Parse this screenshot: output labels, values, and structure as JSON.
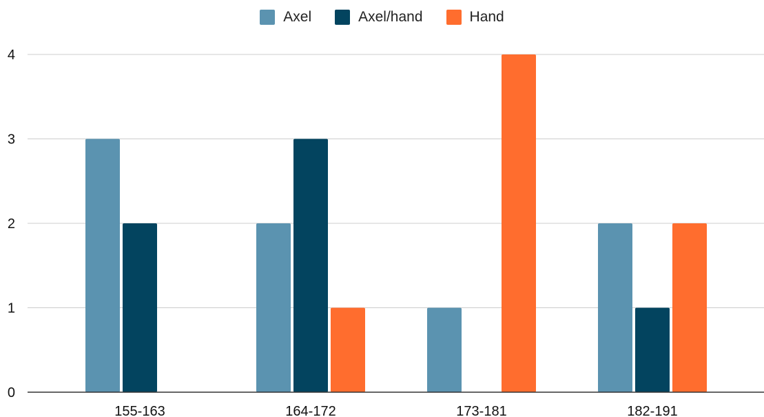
{
  "chart_data": {
    "type": "bar",
    "title": "",
    "xlabel": "",
    "ylabel": "",
    "categories": [
      "155-163",
      "164-172",
      "173-181",
      "182-191"
    ],
    "series": [
      {
        "name": "Axel",
        "color": "#5b93b0",
        "values": [
          3,
          2,
          1,
          2
        ]
      },
      {
        "name": "Axel/hand",
        "color": "#03445f",
        "values": [
          2,
          3,
          0,
          1
        ]
      },
      {
        "name": "Hand",
        "color": "#ff6d2e",
        "values": [
          0,
          1,
          4,
          2
        ]
      }
    ],
    "ylim": [
      0,
      4
    ],
    "yticks": [
      "0",
      "1",
      "2",
      "3",
      "4"
    ],
    "grid": true,
    "legend_position": "top-center"
  }
}
